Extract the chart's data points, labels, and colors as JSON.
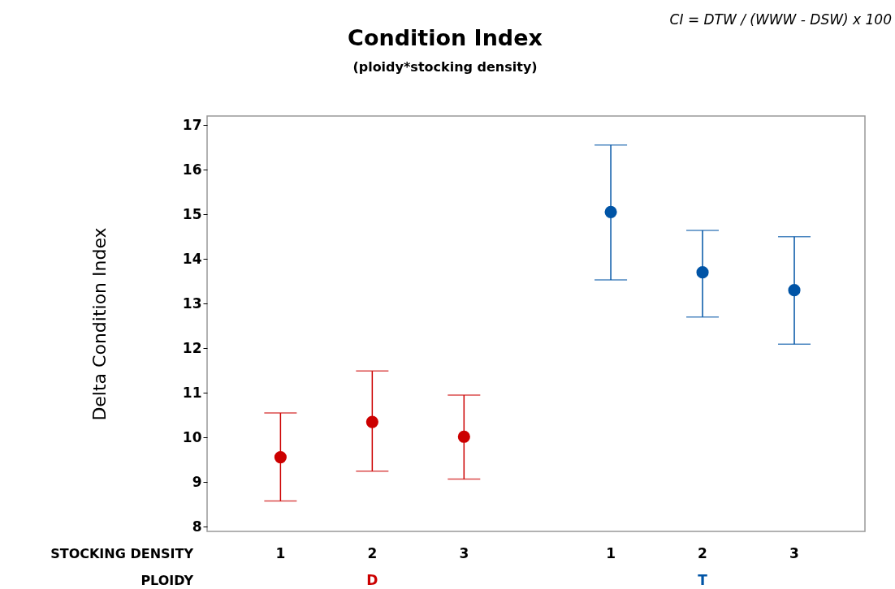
{
  "chart_data": {
    "type": "scatter",
    "title": "Condition Index",
    "subtitle": "(ploidy*stocking density)",
    "ylabel": "Delta Condition Index",
    "xlabel": "STOCKING DENSITY",
    "legend_title": "PLOIDY",
    "annotations": [
      "CI = DTW / (WWW - DSW) x 100"
    ],
    "categories": [
      "1",
      "2",
      "3",
      "1",
      "2",
      "3"
    ],
    "series": [
      {
        "name": "D",
        "color": "#cc0000",
        "values": [
          9.56,
          10.35,
          10.02,
          null,
          null,
          null
        ],
        "errors": [
          [
            8.58,
            10.55
          ],
          [
            9.25,
            11.49
          ],
          [
            9.07,
            10.95
          ],
          null,
          null,
          null
        ]
      },
      {
        "name": "T",
        "color": "#0054a6",
        "values": [
          null,
          null,
          null,
          15.05,
          13.7,
          13.3
        ],
        "errors": [
          null,
          null,
          null,
          [
            13.53,
            16.55
          ],
          [
            12.7,
            14.64
          ],
          [
            12.09,
            14.5
          ]
        ]
      }
    ],
    "ylim": [
      7.9,
      17.2
    ],
    "yticks": [
      8,
      9,
      10,
      11,
      12,
      13,
      14,
      15,
      16,
      17
    ],
    "marker": "circle",
    "grid": false
  }
}
